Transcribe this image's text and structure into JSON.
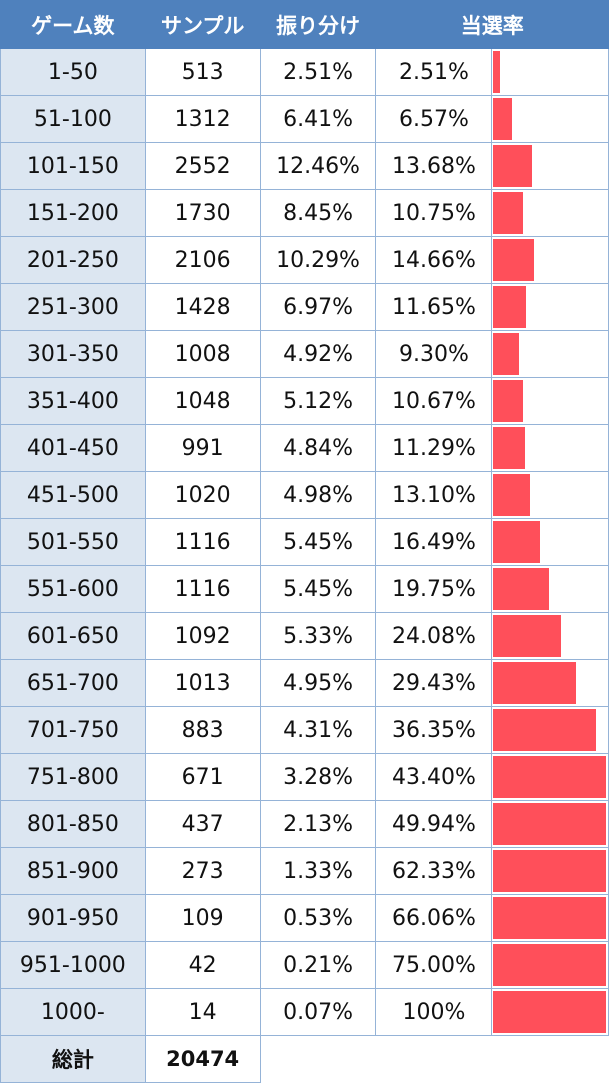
{
  "chart_data": {
    "type": "table",
    "columns": [
      "ゲーム数",
      "サンプル",
      "振り分け",
      "当選率"
    ],
    "rows": [
      {
        "range": "1-50",
        "samples": "513",
        "share": "2.51%",
        "rate": "2.51%",
        "rate_value": 2.51
      },
      {
        "range": "51-100",
        "samples": "1312",
        "share": "6.41%",
        "rate": "6.57%",
        "rate_value": 6.57
      },
      {
        "range": "101-150",
        "samples": "2552",
        "share": "12.46%",
        "rate": "13.68%",
        "rate_value": 13.68
      },
      {
        "range": "151-200",
        "samples": "1730",
        "share": "8.45%",
        "rate": "10.75%",
        "rate_value": 10.75
      },
      {
        "range": "201-250",
        "samples": "2106",
        "share": "10.29%",
        "rate": "14.66%",
        "rate_value": 14.66
      },
      {
        "range": "251-300",
        "samples": "1428",
        "share": "6.97%",
        "rate": "11.65%",
        "rate_value": 11.65
      },
      {
        "range": "301-350",
        "samples": "1008",
        "share": "4.92%",
        "rate": "9.30%",
        "rate_value": 9.3
      },
      {
        "range": "351-400",
        "samples": "1048",
        "share": "5.12%",
        "rate": "10.67%",
        "rate_value": 10.67
      },
      {
        "range": "401-450",
        "samples": "991",
        "share": "4.84%",
        "rate": "11.29%",
        "rate_value": 11.29
      },
      {
        "range": "451-500",
        "samples": "1020",
        "share": "4.98%",
        "rate": "13.10%",
        "rate_value": 13.1
      },
      {
        "range": "501-550",
        "samples": "1116",
        "share": "5.45%",
        "rate": "16.49%",
        "rate_value": 16.49
      },
      {
        "range": "551-600",
        "samples": "1116",
        "share": "5.45%",
        "rate": "19.75%",
        "rate_value": 19.75
      },
      {
        "range": "601-650",
        "samples": "1092",
        "share": "5.33%",
        "rate": "24.08%",
        "rate_value": 24.08
      },
      {
        "range": "651-700",
        "samples": "1013",
        "share": "4.95%",
        "rate": "29.43%",
        "rate_value": 29.43
      },
      {
        "range": "701-750",
        "samples": "883",
        "share": "4.31%",
        "rate": "36.35%",
        "rate_value": 36.35
      },
      {
        "range": "751-800",
        "samples": "671",
        "share": "3.28%",
        "rate": "43.40%",
        "rate_value": 43.4
      },
      {
        "range": "801-850",
        "samples": "437",
        "share": "2.13%",
        "rate": "49.94%",
        "rate_value": 49.94
      },
      {
        "range": "851-900",
        "samples": "273",
        "share": "1.33%",
        "rate": "62.33%",
        "rate_value": 62.33
      },
      {
        "range": "901-950",
        "samples": "109",
        "share": "0.53%",
        "rate": "66.06%",
        "rate_value": 66.06
      },
      {
        "range": "951-1000",
        "samples": "42",
        "share": "0.21%",
        "rate": "75.00%",
        "rate_value": 75.0
      },
      {
        "range": "1000-",
        "samples": "14",
        "share": "0.07%",
        "rate": "100%",
        "rate_value": 100
      }
    ],
    "total_label": "総計",
    "total_samples": "20474",
    "bar_color": "#ff4f5a",
    "bar_scale_max": 40
  },
  "colors": {
    "header_bg": "#4f81bd",
    "label_bg": "#dce6f1",
    "border": "#95b3d7"
  }
}
